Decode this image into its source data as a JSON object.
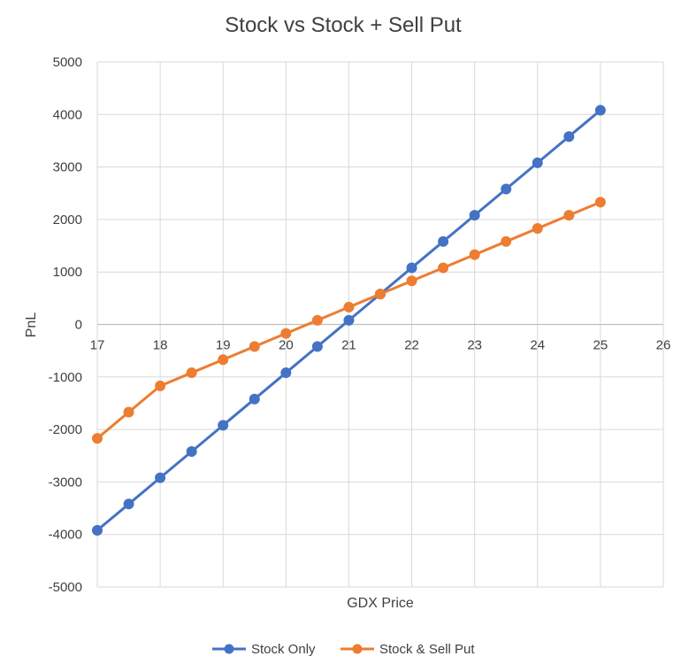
{
  "chart_data": {
    "type": "line",
    "title": "Stock vs Stock + Sell Put",
    "xlabel": "GDX Price",
    "ylabel": "PnL",
    "xlim": [
      17,
      26
    ],
    "ylim": [
      -5000,
      5000
    ],
    "x_ticks": [
      "17",
      "18",
      "19",
      "20",
      "21",
      "22",
      "23",
      "24",
      "25",
      "26"
    ],
    "y_ticks": [
      "5000",
      "4000",
      "3000",
      "2000",
      "1000",
      "0",
      "-1000",
      "-2000",
      "-3000",
      "-4000",
      "-5000"
    ],
    "grid": true,
    "legend_position": "bottom",
    "series": [
      {
        "name": "Stock Only",
        "color": "#4472C4",
        "x": [
          17,
          17.5,
          18,
          18.5,
          19,
          19.5,
          20,
          20.5,
          21,
          21.5,
          22,
          22.5,
          23,
          23.5,
          24,
          24.5,
          25
        ],
        "y": [
          -3920,
          -3420,
          -2920,
          -2420,
          -1920,
          -1420,
          -920,
          -420,
          80,
          580,
          1080,
          1580,
          2080,
          2580,
          3080,
          3580,
          4080
        ]
      },
      {
        "name": "Stock & Sell Put",
        "color": "#ED7D31",
        "x": [
          17,
          17.5,
          18,
          18.5,
          19,
          19.5,
          20,
          20.5,
          21,
          21.5,
          22,
          22.5,
          23,
          23.5,
          24,
          24.5,
          25
        ],
        "y": [
          -2170,
          -1670,
          -1170,
          -920,
          -670,
          -420,
          -170,
          80,
          330,
          580,
          830,
          1080,
          1330,
          1580,
          1830,
          2080,
          2330
        ]
      }
    ]
  }
}
